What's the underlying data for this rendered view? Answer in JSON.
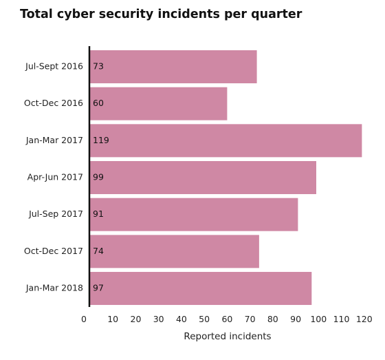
{
  "chart_data": {
    "type": "bar",
    "orientation": "horizontal",
    "title": "Total cyber security incidents per quarter",
    "xlabel": "Reported incidents",
    "ylabel": "",
    "categories": [
      "Jul-Sept 2016",
      "Oct-Dec 2016",
      "Jan-Mar 2017",
      "Apr-Jun 2017",
      "Jul-Sep 2017",
      "Oct-Dec 2017",
      "Jan-Mar 2018"
    ],
    "values": [
      73,
      60,
      119,
      99,
      91,
      74,
      97
    ],
    "xlim": [
      0,
      120
    ],
    "xticks": [
      0,
      10,
      20,
      30,
      40,
      50,
      60,
      70,
      80,
      90,
      100,
      110,
      120
    ],
    "grid": false,
    "legend": "none",
    "bar_color": "#cf88a4",
    "axis_color": "#111111"
  }
}
